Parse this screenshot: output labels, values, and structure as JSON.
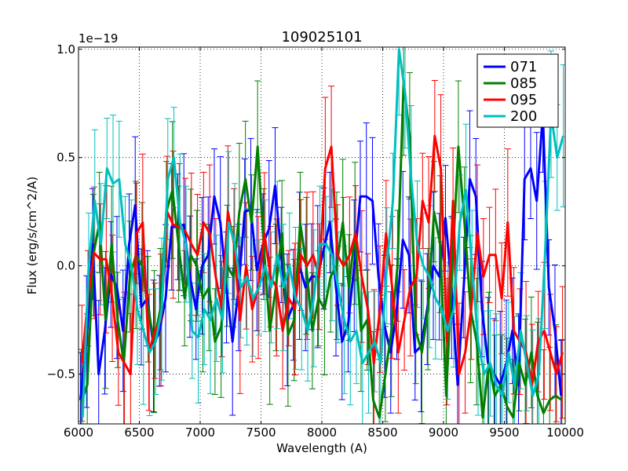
{
  "chart_data": {
    "type": "line",
    "title": "109025101",
    "xlabel": "Wavelength (A)",
    "ylabel": "Flux (erg/s/cm^2/A)",
    "offset_label": "1e−19",
    "xlim": [
      6000,
      10000
    ],
    "ylim": [
      -0.73,
      1.01
    ],
    "xticks": [
      6000,
      6500,
      7000,
      7500,
      8000,
      8500,
      9000,
      9500,
      10000
    ],
    "xtick_labels": [
      "6000",
      "6500",
      "7000",
      "7500",
      "8000",
      "8500",
      "9000",
      "9500",
      "10000"
    ],
    "yticks": [
      -0.5,
      0.0,
      0.5,
      1.0
    ],
    "ytick_labels": [
      "−0.5",
      "0.0",
      "0.5",
      "1.0"
    ],
    "grid": true,
    "legend_location": "top-right",
    "x": [
      6025,
      6075,
      6125,
      6175,
      6225,
      6275,
      6325,
      6375,
      6425,
      6475,
      6525,
      6575,
      6625,
      6675,
      6725,
      6775,
      6825,
      6875,
      6925,
      6975,
      7025,
      7075,
      7125,
      7175,
      7225,
      7275,
      7325,
      7375,
      7425,
      7475,
      7525,
      7575,
      7625,
      7675,
      7725,
      7775,
      7825,
      7875,
      7925,
      7975,
      8025,
      8075,
      8125,
      8175,
      8225,
      8275,
      8325,
      8375,
      8425,
      8475,
      8525,
      8575,
      8625,
      8675,
      8725,
      8775,
      8825,
      8875,
      8925,
      8975,
      9025,
      9075,
      9125,
      9175,
      9225,
      9275,
      9325,
      9375,
      9425,
      9475,
      9525,
      9575,
      9625,
      9675,
      9725,
      9775,
      9825,
      9875,
      9925,
      9975
    ],
    "series": [
      {
        "name": "071",
        "color": "#0000ff",
        "values": [
          -0.62,
          -0.35,
          0.1,
          -0.5,
          -0.3,
          -0.04,
          -0.1,
          -0.3,
          0.1,
          0.28,
          -0.19,
          -0.15,
          -0.37,
          -0.3,
          -0.15,
          0.18,
          0.18,
          0.19,
          -0.05,
          -0.2,
          0.0,
          0.05,
          0.32,
          0.2,
          -0.1,
          -0.35,
          -0.1,
          0.25,
          0.26,
          -0.02,
          0.1,
          0.17,
          0.37,
          0.05,
          -0.25,
          -0.18,
          0.0,
          -0.1,
          -0.05,
          -0.05,
          0.08,
          0.2,
          -0.1,
          -0.35,
          -0.27,
          0.0,
          0.32,
          0.32,
          0.3,
          -0.05,
          -0.28,
          -0.4,
          -0.2,
          0.12,
          0.05,
          -0.4,
          -0.37,
          -0.2,
          0.0,
          -0.05,
          0.22,
          -0.1,
          -0.55,
          -0.1,
          0.4,
          0.32,
          -0.2,
          -0.45,
          -0.5,
          -0.55,
          -0.45,
          -0.3,
          -0.55,
          0.4,
          0.45,
          0.3,
          0.7,
          -0.1,
          -0.3,
          -0.6
        ]
      },
      {
        "name": "085",
        "color": "#008000",
        "values": [
          -0.63,
          -0.55,
          0.05,
          0.2,
          -0.25,
          0.1,
          -0.25,
          -0.45,
          -0.05,
          0.05,
          0.0,
          -0.2,
          -0.35,
          -0.2,
          0.25,
          0.35,
          0.1,
          -0.15,
          0.05,
          0.0,
          -0.15,
          -0.1,
          -0.35,
          -0.28,
          0.0,
          -0.05,
          0.25,
          0.4,
          0.2,
          0.55,
          0.1,
          -0.3,
          -0.1,
          0.15,
          -0.32,
          -0.25,
          0.2,
          0.0,
          -0.3,
          -0.15,
          -0.2,
          -0.05,
          0.0,
          0.2,
          -0.1,
          0.15,
          -0.3,
          -0.25,
          -0.62,
          -0.7,
          -0.5,
          -0.3,
          0.0,
          0.85,
          0.6,
          -0.3,
          -0.4,
          -0.2,
          0.25,
          0.1,
          -0.6,
          0.0,
          0.55,
          0.2,
          -0.2,
          -0.35,
          -0.7,
          -0.45,
          -0.6,
          -0.55,
          -0.65,
          -0.7,
          -0.45,
          -0.55,
          -0.4,
          -0.6,
          -0.68,
          -0.62,
          -0.6,
          -0.62
        ]
      },
      {
        "name": "095",
        "color": "#ff0000",
        "values": [
          -0.45,
          -0.15,
          0.06,
          0.03,
          0.03,
          -0.15,
          -0.4,
          -0.45,
          -0.5,
          0.15,
          0.2,
          -0.4,
          -0.3,
          -0.25,
          0.25,
          0.19,
          0.18,
          0.16,
          0.1,
          0.05,
          0.2,
          0.15,
          -0.05,
          -0.2,
          0.25,
          0.1,
          -0.25,
          0.0,
          -0.2,
          -0.1,
          0.15,
          -0.05,
          -0.1,
          -0.3,
          -0.15,
          -0.2,
          0.05,
          0.0,
          0.05,
          -0.05,
          0.45,
          0.55,
          0.05,
          0.0,
          0.05,
          0.15,
          -0.05,
          -0.2,
          -0.45,
          -0.2,
          0.15,
          -0.1,
          -0.4,
          -0.25,
          -0.1,
          -0.05,
          0.3,
          0.2,
          0.6,
          0.45,
          -0.35,
          0.3,
          -0.5,
          -0.4,
          -0.2,
          0.15,
          -0.05,
          0.05,
          0.05,
          -0.15,
          0.2,
          -0.3,
          -0.35,
          -0.4,
          -0.55,
          -0.35,
          -0.3,
          -0.4,
          -0.5,
          -0.4
        ]
      },
      {
        "name": "200",
        "color": "#00bfbf",
        "values": [
          -0.7,
          0.0,
          0.3,
          0.1,
          0.45,
          0.38,
          0.4,
          0.1,
          0.0,
          -0.2,
          -0.3,
          -0.4,
          -0.35,
          -0.2,
          0.4,
          0.5,
          0.2,
          0.1,
          -0.3,
          -0.33,
          -0.2,
          -0.25,
          -0.15,
          -0.25,
          0.2,
          0.1,
          -0.1,
          -0.05,
          -0.15,
          -0.1,
          0.0,
          -0.1,
          0.05,
          -0.1,
          0.0,
          -0.15,
          -0.2,
          -0.3,
          -0.15,
          0.1,
          0.1,
          0.05,
          -0.1,
          -0.25,
          -0.35,
          -0.3,
          -0.45,
          -0.4,
          -0.35,
          -0.45,
          0.0,
          0.3,
          1.0,
          0.8,
          0.4,
          0.1,
          0.0,
          -0.05,
          -0.15,
          -0.2,
          -0.3,
          -0.2,
          0.2,
          0.35,
          0.0,
          -0.35,
          -0.5,
          -0.45,
          -0.55,
          -0.6,
          -0.4,
          -0.55,
          -0.3,
          -0.45,
          -0.6,
          -0.5,
          0.05,
          0.7,
          0.5,
          0.6
        ]
      }
    ]
  }
}
